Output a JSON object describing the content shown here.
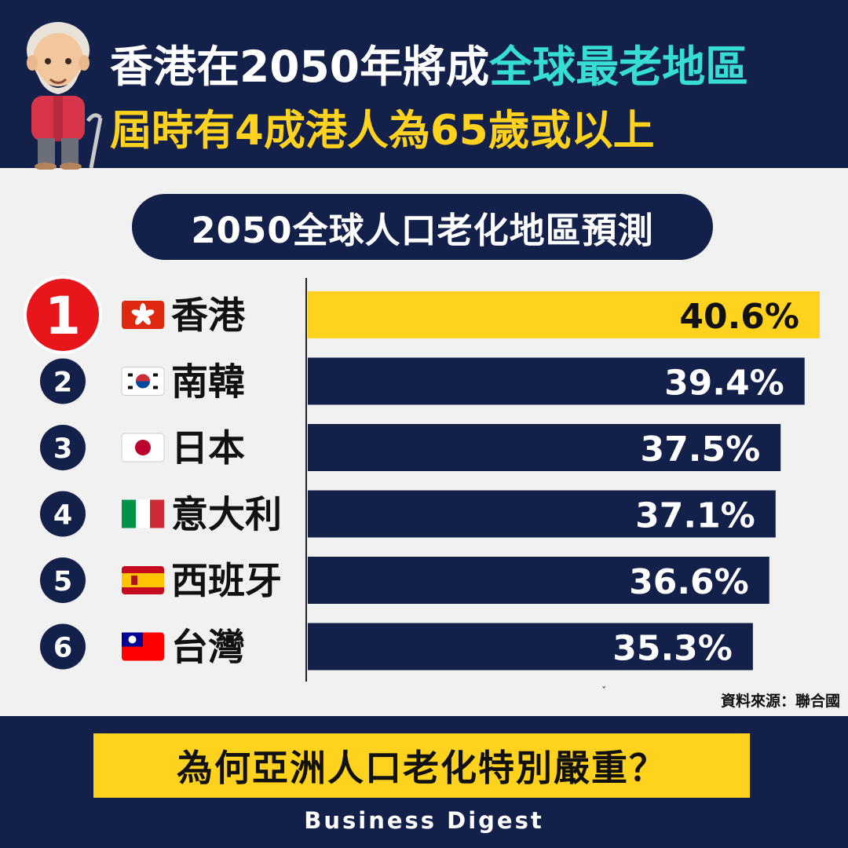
{
  "header": {
    "title_line1_prefix": "香港在2050年將成",
    "title_line1_highlight": "全球最老地區",
    "title_line2": "屆時有4成港人為65歲或以上"
  },
  "chart_title": "2050全球人口老化地區預測",
  "source": "資料來源：聯合國",
  "footer": {
    "question": "為何亞洲人口老化特別嚴重？",
    "brand": "Business Digest"
  },
  "colors": {
    "navy": "#13204a",
    "highlight_bar": "#ffd21e",
    "rank1_circle": "#e8151b",
    "title_highlight": "#37dcd2"
  },
  "chart_data": {
    "type": "bar",
    "orientation": "horizontal",
    "title": "2050全球人口老化地區預測",
    "categories": [
      "香港",
      "南韓",
      "日本",
      "意大利",
      "西班牙",
      "台灣"
    ],
    "ranks": [
      "1",
      "2",
      "3",
      "4",
      "5",
      "6"
    ],
    "flags": [
      "hk-flag-icon",
      "kr-flag-icon",
      "jp-flag-icon",
      "it-flag-icon",
      "es-flag-icon",
      "tw-flag-icon"
    ],
    "values": [
      40.6,
      39.4,
      37.5,
      37.1,
      36.6,
      35.3
    ],
    "labels": [
      "40.6%",
      "39.4%",
      "37.5%",
      "37.1%",
      "36.6%",
      "35.3%"
    ],
    "unit": "%",
    "xlim": [
      0,
      40.6
    ],
    "highlight_index": 0,
    "grid": false,
    "legend": "none"
  }
}
